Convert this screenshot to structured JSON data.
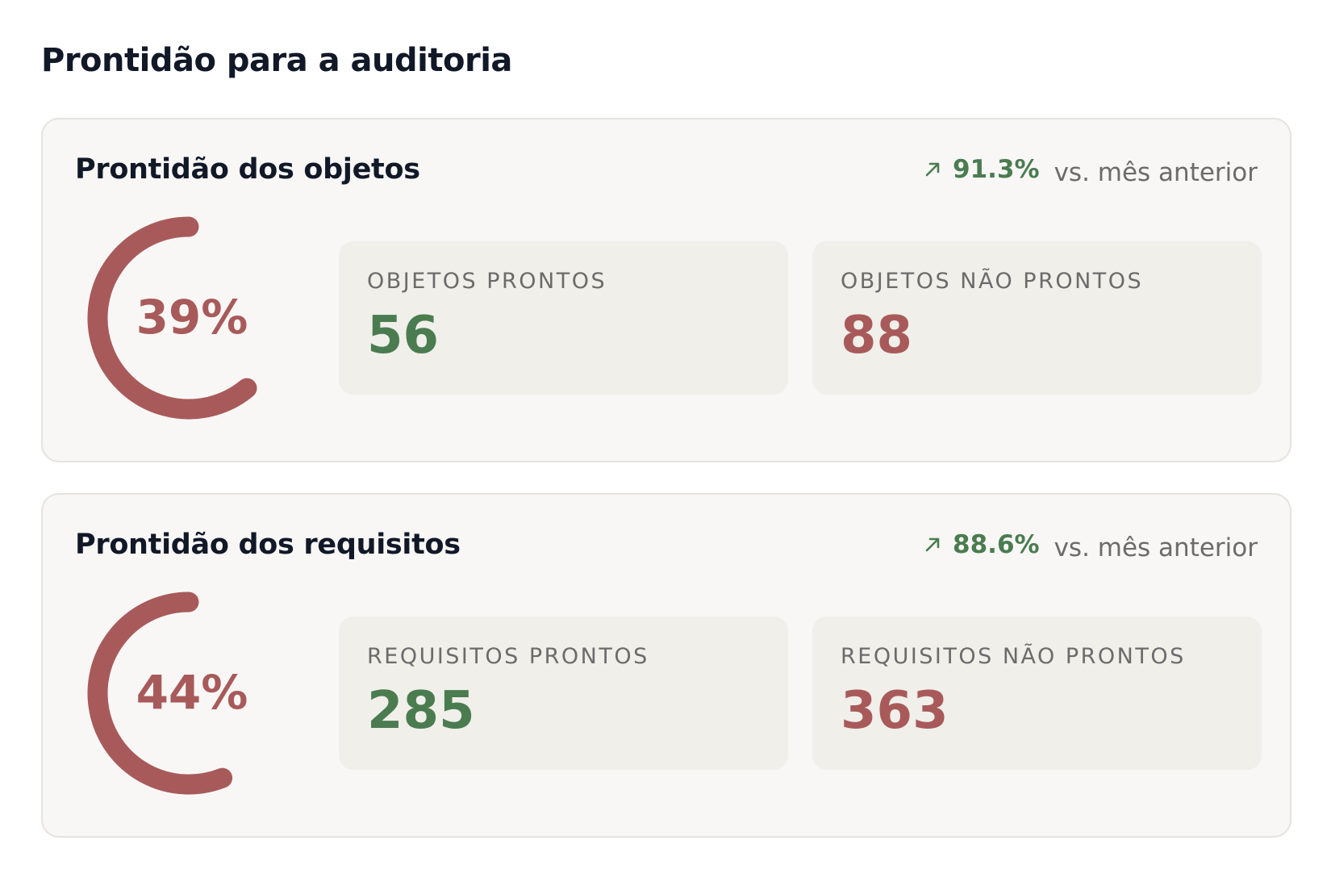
{
  "header": {
    "title": "Prontidão para a auditoria"
  },
  "cards": [
    {
      "title": "Prontidão dos objetos",
      "trend": "91.3%",
      "trend_suffix": "vs. mês anterior",
      "gauge": {
        "value": 39,
        "label": "39%"
      },
      "stats": [
        {
          "label": "OBJETOS PRONTOS",
          "value": 56,
          "tone": "green"
        },
        {
          "label": "OBJETOS NÃO PRONTOS",
          "value": 88,
          "tone": "red"
        }
      ]
    },
    {
      "title": "Prontidão dos requisitos",
      "trend": "88.6%",
      "trend_suffix": "vs. mês anterior",
      "gauge": {
        "value": 44,
        "label": "44%"
      },
      "stats": [
        {
          "label": "REQUISITOS PRONTOS",
          "value": 285,
          "tone": "green"
        },
        {
          "label": "REQUISITOS NÃO PRONTOS",
          "value": 363,
          "tone": "red"
        }
      ]
    }
  ]
}
